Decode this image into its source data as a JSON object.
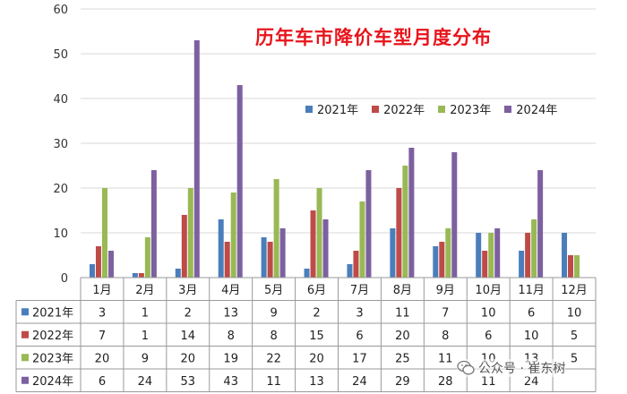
{
  "chart_data": {
    "type": "bar",
    "title": "历年车市降价车型月度分布",
    "categories": [
      "1月",
      "2月",
      "3月",
      "4月",
      "5月",
      "6月",
      "7月",
      "8月",
      "9月",
      "10月",
      "11月",
      "12月"
    ],
    "series": [
      {
        "name": "2021年",
        "color": "#4a7ebb",
        "values": [
          3,
          1,
          2,
          13,
          9,
          2,
          3,
          11,
          7,
          10,
          6,
          10
        ]
      },
      {
        "name": "2022年",
        "color": "#be4b48",
        "values": [
          7,
          1,
          14,
          8,
          8,
          15,
          6,
          20,
          8,
          6,
          10,
          5
        ]
      },
      {
        "name": "2023年",
        "color": "#98b954",
        "values": [
          20,
          9,
          20,
          19,
          22,
          20,
          17,
          25,
          11,
          10,
          13,
          5
        ]
      },
      {
        "name": "2024年",
        "color": "#7d60a0",
        "values": [
          6,
          24,
          53,
          43,
          11,
          13,
          24,
          29,
          28,
          11,
          24,
          null
        ]
      }
    ],
    "ylim": [
      0,
      60
    ],
    "yticks": [
      0,
      10,
      20,
      30,
      40,
      50,
      60
    ],
    "grid": true,
    "legend": "top-right",
    "data_table": true
  },
  "watermark": {
    "text": "公众号 · 崔东树",
    "icon": "wechat-icon"
  }
}
